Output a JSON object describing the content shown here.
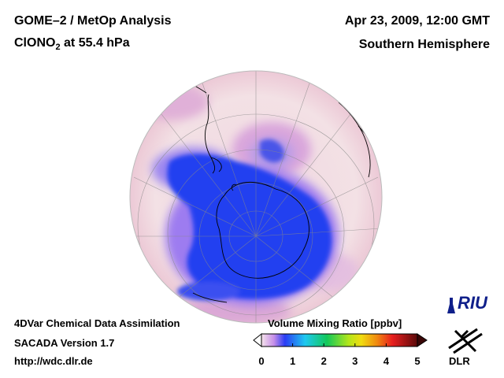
{
  "title": {
    "product": "GOME–2 / MetOp Analysis",
    "species_prefix": "ClONO",
    "species_subscript": "2",
    "species_suffix": " at 55.4 hPa",
    "datetime": "Apr 23, 2009, 12:00 GMT",
    "region": "Southern Hemisphere"
  },
  "footer": {
    "line1": "4DVar Chemical Data Assimilation",
    "line2": "SACADA Version 1.7",
    "line3": "http://wdc.dlr.de"
  },
  "colorbar": {
    "title": "Volume Mixing Ratio [ppbv]",
    "ticks": [
      "0",
      "1",
      "2",
      "3",
      "4",
      "5"
    ],
    "range": [
      0,
      5
    ]
  },
  "logos": {
    "riu": "RIU",
    "dlr": "DLR"
  },
  "colors": {
    "background_field": "#f2dde2",
    "low_value": "#1f3cf0",
    "outline": "#000000"
  }
}
